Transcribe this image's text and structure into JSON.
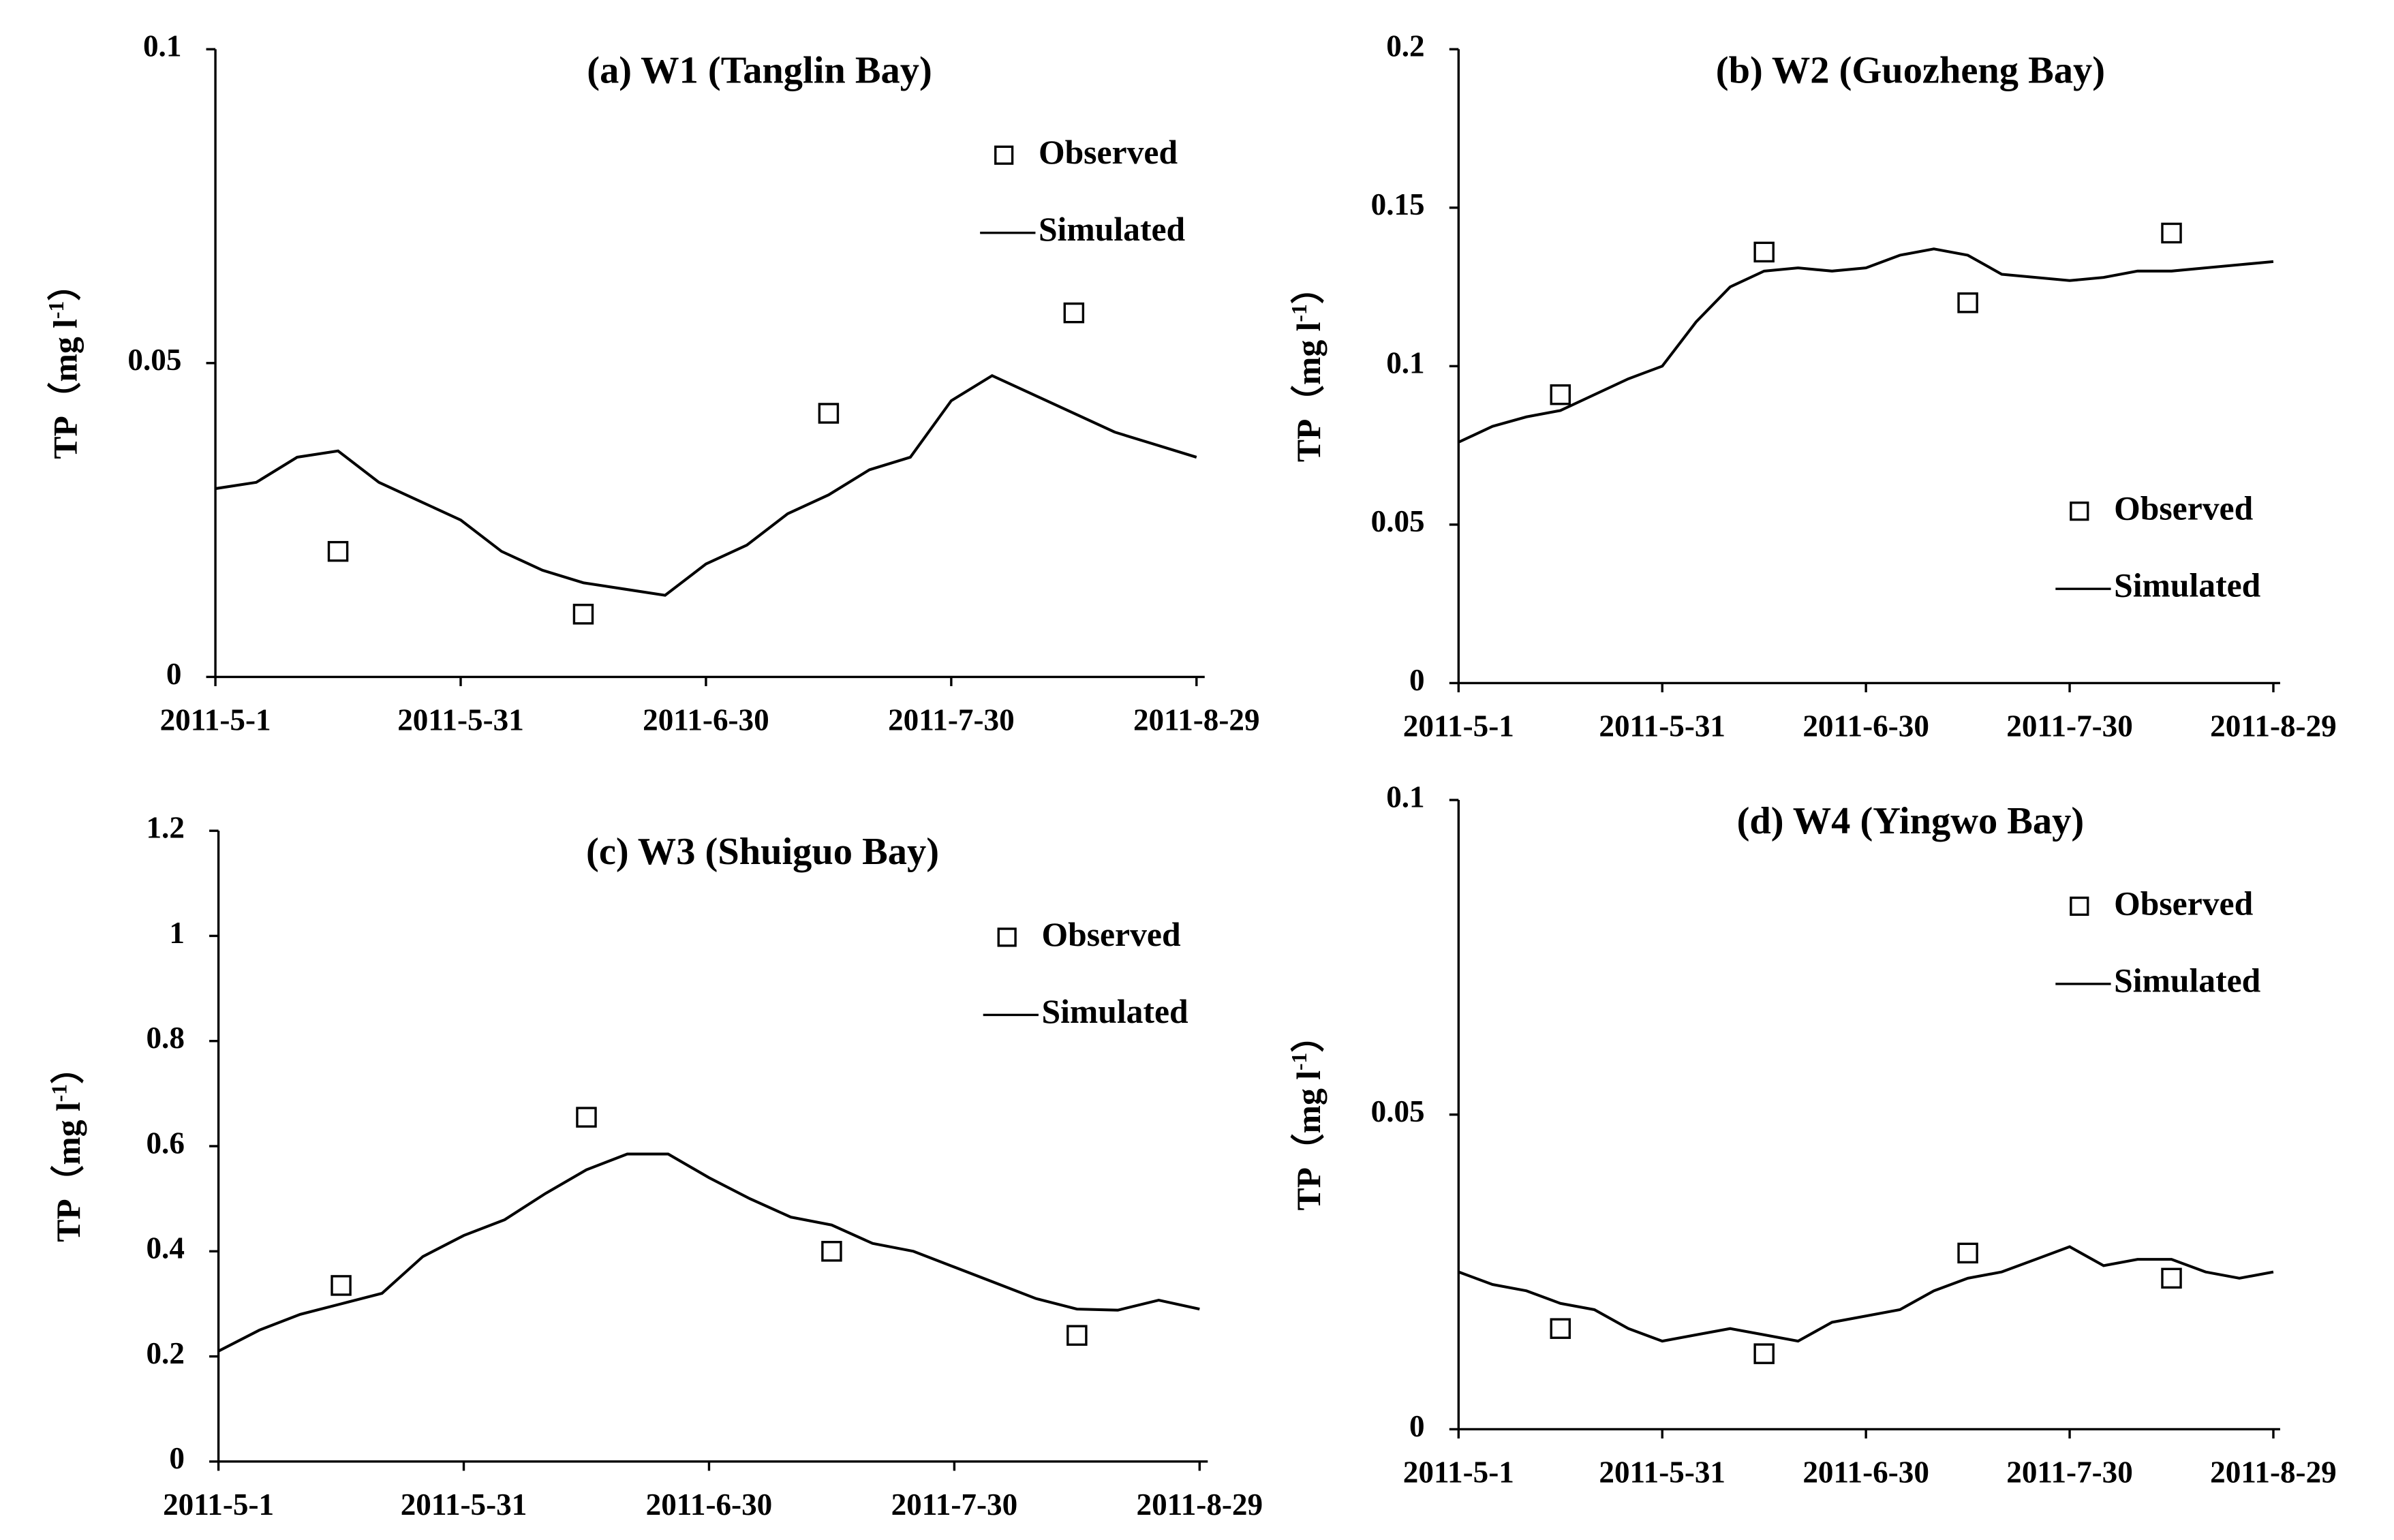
{
  "chart_data": [
    {
      "type": "line",
      "title": "(a) W1 (Tanglin Bay)",
      "y_label": {
        "text": "TP（mg l",
        "superscript": "-1",
        "close": "）"
      },
      "xlim": [
        "2011-5-1",
        "2011-8-30"
      ],
      "xticks": [
        "2011-5-1",
        "2011-5-31",
        "2011-6-30",
        "2011-7-30",
        "2011-8-29"
      ],
      "ylim": [
        0,
        0.1
      ],
      "yticks": [
        0,
        0.05,
        0.1
      ],
      "legend": "upper right",
      "series": [
        {
          "name": "Observed",
          "type": "scatter",
          "color": "#000000",
          "x": [
            "2011-5-16",
            "2011-6-15",
            "2011-7-15",
            "2011-8-14"
          ],
          "values": [
            0.02,
            0.01,
            0.042,
            0.058
          ]
        },
        {
          "name": "Simulated",
          "type": "line",
          "color": "#000000",
          "x": [
            "2011-5-1",
            "2011-5-6",
            "2011-5-11",
            "2011-5-16",
            "2011-5-21",
            "2011-5-26",
            "2011-5-31",
            "2011-6-5",
            "2011-6-10",
            "2011-6-15",
            "2011-6-20",
            "2011-6-25",
            "2011-6-30",
            "2011-7-5",
            "2011-7-10",
            "2011-7-15",
            "2011-7-20",
            "2011-7-25",
            "2011-7-30",
            "2011-8-4",
            "2011-8-9",
            "2011-8-14",
            "2011-8-19",
            "2011-8-24",
            "2011-8-29"
          ],
          "values": [
            0.03,
            0.031,
            0.035,
            0.036,
            0.031,
            0.028,
            0.025,
            0.02,
            0.017,
            0.015,
            0.014,
            0.013,
            0.018,
            0.021,
            0.026,
            0.029,
            0.033,
            0.035,
            0.044,
            0.048,
            0.045,
            0.042,
            0.039,
            0.037,
            0.035
          ]
        }
      ]
    },
    {
      "type": "line",
      "title": "(b) W2 (Guozheng Bay)",
      "y_label": {
        "text": "TP（mg l",
        "superscript": "-1",
        "close": "）"
      },
      "xlim": [
        "2011-5-1",
        "2011-8-30"
      ],
      "xticks": [
        "2011-5-1",
        "2011-5-31",
        "2011-6-30",
        "2011-7-30",
        "2011-8-29"
      ],
      "ylim": [
        0,
        0.2
      ],
      "yticks": [
        0,
        0.05,
        0.1,
        0.15,
        0.2
      ],
      "legend": "center right",
      "series": [
        {
          "name": "Observed",
          "type": "scatter",
          "color": "#000000",
          "x": [
            "2011-5-16",
            "2011-6-15",
            "2011-7-15",
            "2011-8-14"
          ],
          "values": [
            0.091,
            0.136,
            0.12,
            0.142
          ]
        },
        {
          "name": "Simulated",
          "type": "line",
          "color": "#000000",
          "x": [
            "2011-5-1",
            "2011-5-6",
            "2011-5-11",
            "2011-5-16",
            "2011-5-21",
            "2011-5-26",
            "2011-5-31",
            "2011-6-5",
            "2011-6-10",
            "2011-6-15",
            "2011-6-20",
            "2011-6-25",
            "2011-6-30",
            "2011-7-5",
            "2011-7-10",
            "2011-7-15",
            "2011-7-20",
            "2011-7-25",
            "2011-7-30",
            "2011-8-4",
            "2011-8-9",
            "2011-8-14",
            "2011-8-19",
            "2011-8-24",
            "2011-8-29"
          ],
          "values": [
            0.076,
            0.081,
            0.084,
            0.086,
            0.091,
            0.096,
            0.1,
            0.114,
            0.125,
            0.13,
            0.131,
            0.13,
            0.131,
            0.135,
            0.137,
            0.135,
            0.129,
            0.128,
            0.127,
            0.128,
            0.13,
            0.13,
            0.131,
            0.132,
            0.133
          ]
        }
      ]
    },
    {
      "type": "line",
      "title": "(c) W3 (Shuiguo Bay)",
      "y_label": {
        "text": "TP（mg l",
        "superscript": "-1",
        "close": "）"
      },
      "xlim": [
        "2011-5-1",
        "2011-8-30"
      ],
      "xticks": [
        "2011-5-1",
        "2011-5-31",
        "2011-6-30",
        "2011-7-30",
        "2011-8-29"
      ],
      "ylim": [
        0,
        1.2
      ],
      "yticks": [
        0,
        0.2,
        0.4,
        0.6,
        0.8,
        1,
        1.2
      ],
      "legend": "upper right",
      "series": [
        {
          "name": "Observed",
          "type": "scatter",
          "color": "#000000",
          "x": [
            "2011-5-16",
            "2011-6-15",
            "2011-7-15",
            "2011-8-14"
          ],
          "values": [
            0.335,
            0.655,
            0.4,
            0.24
          ]
        },
        {
          "name": "Simulated",
          "type": "line",
          "color": "#000000",
          "x": [
            "2011-5-1",
            "2011-5-6",
            "2011-5-11",
            "2011-5-16",
            "2011-5-21",
            "2011-5-26",
            "2011-5-31",
            "2011-6-5",
            "2011-6-10",
            "2011-6-15",
            "2011-6-20",
            "2011-6-25",
            "2011-6-30",
            "2011-7-5",
            "2011-7-10",
            "2011-7-15",
            "2011-7-20",
            "2011-7-25",
            "2011-7-30",
            "2011-8-4",
            "2011-8-9",
            "2011-8-14",
            "2011-8-19",
            "2011-8-24",
            "2011-8-29"
          ],
          "values": [
            0.21,
            0.25,
            0.28,
            0.3,
            0.32,
            0.39,
            0.43,
            0.46,
            0.51,
            0.555,
            0.585,
            0.585,
            0.54,
            0.5,
            0.465,
            0.45,
            0.415,
            0.4,
            0.37,
            0.34,
            0.31,
            0.29,
            0.288,
            0.307,
            0.29
          ]
        }
      ]
    },
    {
      "type": "line",
      "title": "(d) W4 (Yingwo Bay)",
      "y_label": {
        "text": "TP（mg l",
        "superscript": "-1",
        "close": "）"
      },
      "xlim": [
        "2011-5-1",
        "2011-8-30"
      ],
      "xticks": [
        "2011-5-1",
        "2011-5-31",
        "2011-6-30",
        "2011-7-30",
        "2011-8-29"
      ],
      "ylim": [
        0,
        0.1
      ],
      "yticks": [
        0,
        0.05,
        0.1
      ],
      "legend": "upper right",
      "series": [
        {
          "name": "Observed",
          "type": "scatter",
          "color": "#000000",
          "x": [
            "2011-5-16",
            "2011-6-15",
            "2011-7-15",
            "2011-8-14"
          ],
          "values": [
            0.016,
            0.012,
            0.028,
            0.024
          ]
        },
        {
          "name": "Simulated",
          "type": "line",
          "color": "#000000",
          "x": [
            "2011-5-1",
            "2011-5-6",
            "2011-5-11",
            "2011-5-16",
            "2011-5-21",
            "2011-5-26",
            "2011-5-31",
            "2011-6-5",
            "2011-6-10",
            "2011-6-15",
            "2011-6-20",
            "2011-6-25",
            "2011-6-30",
            "2011-7-5",
            "2011-7-10",
            "2011-7-15",
            "2011-7-20",
            "2011-7-25",
            "2011-7-30",
            "2011-8-4",
            "2011-8-9",
            "2011-8-14",
            "2011-8-19",
            "2011-8-24",
            "2011-8-29"
          ],
          "values": [
            0.025,
            0.023,
            0.022,
            0.02,
            0.019,
            0.016,
            0.014,
            0.015,
            0.016,
            0.015,
            0.014,
            0.017,
            0.018,
            0.019,
            0.022,
            0.024,
            0.025,
            0.027,
            0.029,
            0.026,
            0.027,
            0.027,
            0.025,
            0.024,
            0.025
          ]
        }
      ]
    }
  ]
}
